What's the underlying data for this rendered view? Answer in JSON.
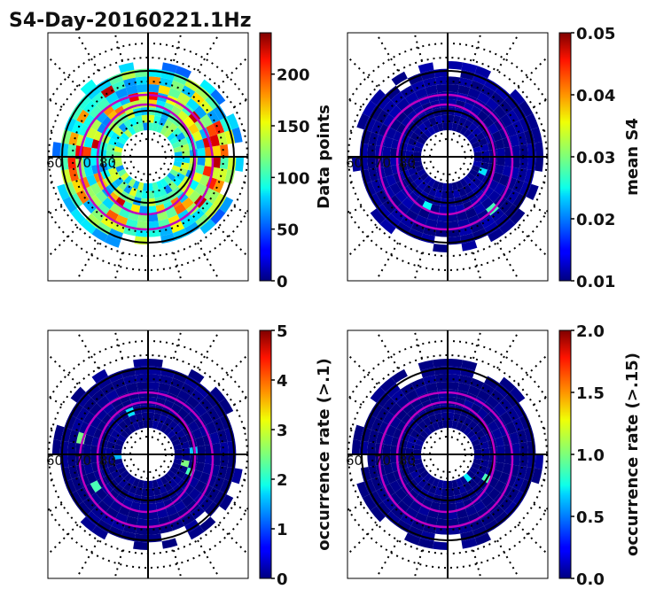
{
  "figure": {
    "title": "S4-Day-20160221.1Hz"
  },
  "chart_data": [
    {
      "type": "heatmap",
      "projection": "polar",
      "colormap": "jet",
      "colorbar": {
        "label": "Data points",
        "range": [
          0,
          240
        ],
        "ticks": [
          {
            "v": 0,
            "t": "0"
          },
          {
            "v": 50,
            "t": "50"
          },
          {
            "v": 100,
            "t": "100"
          },
          {
            "v": 150,
            "t": "150"
          },
          {
            "v": 200,
            "t": "200"
          }
        ]
      },
      "lat_labels": [
        "60",
        "70",
        "80"
      ],
      "level": 0.35,
      "hot_band": true
    },
    {
      "type": "heatmap",
      "projection": "polar",
      "colormap": "jet",
      "colorbar": {
        "label": "mean S4",
        "range": [
          0.01,
          0.05
        ],
        "ticks": [
          {
            "v": 0.01,
            "t": "0.01"
          },
          {
            "v": 0.02,
            "t": "0.02"
          },
          {
            "v": 0.03,
            "t": "0.03"
          },
          {
            "v": 0.04,
            "t": "0.04"
          },
          {
            "v": 0.05,
            "t": "0.05"
          }
        ]
      },
      "lat_labels": [
        "60",
        "70",
        "80"
      ],
      "level": 0.02,
      "hot_band": false
    },
    {
      "type": "heatmap",
      "projection": "polar",
      "colormap": "jet",
      "colorbar": {
        "label": "occurrence rate (>.1)",
        "range": [
          0,
          5
        ],
        "ticks": [
          {
            "v": 0,
            "t": "0"
          },
          {
            "v": 1,
            "t": "1"
          },
          {
            "v": 2,
            "t": "2"
          },
          {
            "v": 3,
            "t": "3"
          },
          {
            "v": 4,
            "t": "4"
          },
          {
            "v": 5,
            "t": "5"
          }
        ]
      },
      "lat_labels": [
        "60",
        "70",
        "80"
      ],
      "level": 0.0,
      "hot_band": false
    },
    {
      "type": "heatmap",
      "projection": "polar",
      "colormap": "jet",
      "colorbar": {
        "label": "occurrence rate (>.15)",
        "range": [
          0,
          2
        ],
        "ticks": [
          {
            "v": 0,
            "t": "0.0"
          },
          {
            "v": 0.5,
            "t": "0.5"
          },
          {
            "v": 1,
            "t": "1.0"
          },
          {
            "v": 1.5,
            "t": "1.5"
          },
          {
            "v": 2,
            "t": "2.0"
          }
        ]
      },
      "lat_labels": [
        "60",
        "70",
        "80"
      ],
      "level": 0.0,
      "hot_band": false
    }
  ]
}
